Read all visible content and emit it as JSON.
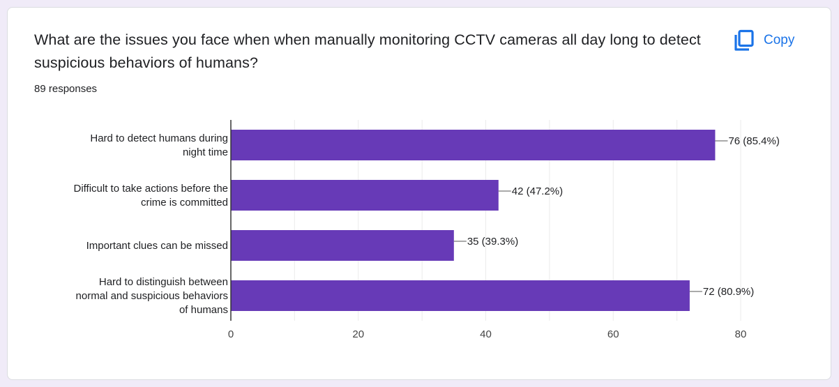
{
  "question": {
    "title": "What are the issues you face when when manually monitoring CCTV cameras all day long to detect suspicious behaviors of humans?",
    "responses_label": "89 responses"
  },
  "copy": {
    "label": "Copy",
    "icon": "copy-icon"
  },
  "colors": {
    "bar": "#673ab7",
    "accent": "#1a73e8",
    "text": "#202124",
    "background": "#f0ebf8",
    "grid": "#ebebeb"
  },
  "chart_data": {
    "type": "bar",
    "orientation": "horizontal",
    "categories": [
      [
        "Hard to detect humans during",
        "night time"
      ],
      [
        "Difficult to take actions before the",
        "crime is committed"
      ],
      [
        "Important clues can be missed"
      ],
      [
        "Hard to distinguish between",
        "normal and suspicious behaviors",
        "of humans"
      ]
    ],
    "values": [
      76,
      42,
      35,
      72
    ],
    "value_labels": [
      "76 (85.4%)",
      "42 (47.2%)",
      "35 (39.3%)",
      "72 (80.9%)"
    ],
    "xlim": [
      0,
      80
    ],
    "ticks": [
      0,
      20,
      40,
      60,
      80
    ],
    "grid": true,
    "legend": "none"
  }
}
